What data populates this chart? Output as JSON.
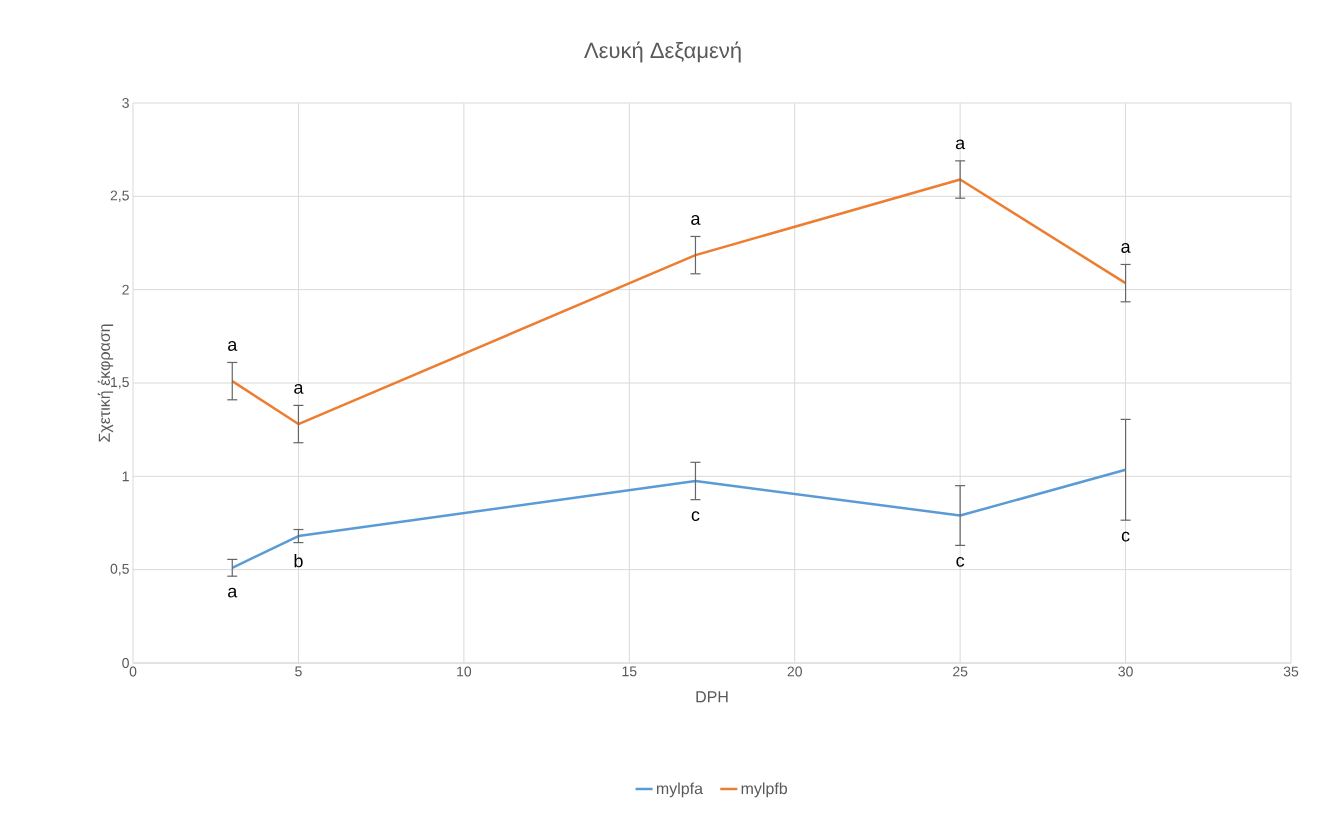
{
  "chart_data": {
    "type": "line",
    "title": "Λευκή Δεξαμενή",
    "xlabel": "DPH",
    "ylabel": "Σχετική έκφραση",
    "x": [
      3,
      5,
      17,
      25,
      30
    ],
    "series": [
      {
        "name": "mylpfa",
        "color": "#5b9bd5",
        "values": [
          0.51,
          0.68,
          0.975,
          0.79,
          1.035
        ],
        "errors": [
          0.045,
          0.035,
          0.1,
          0.16,
          0.27
        ]
      },
      {
        "name": "mylpfb",
        "color": "#ed7d31",
        "values": [
          1.51,
          1.28,
          2.185,
          2.59,
          2.035
        ],
        "errors": [
          0.1,
          0.1,
          0.1,
          0.1,
          0.1
        ]
      }
    ],
    "xlim": [
      0,
      35
    ],
    "xticks": [
      0,
      5,
      10,
      15,
      20,
      25,
      30,
      35
    ],
    "ylim": [
      0,
      3
    ],
    "yticks": [
      0,
      {
        "value": 0.5,
        "label": "0,5"
      },
      1,
      {
        "value": 1.5,
        "label": "1,5"
      },
      2,
      {
        "value": 2.5,
        "label": "2,5"
      },
      3
    ],
    "grid": true,
    "legend": "bottom",
    "annotations": [
      {
        "text": "a",
        "x": 3,
        "y": 0.465
      },
      {
        "text": "b",
        "x": 5,
        "y": 0.645
      },
      {
        "text": "c",
        "x": 17,
        "y": 0.875
      },
      {
        "text": "c",
        "x": 25,
        "y": 0.63
      },
      {
        "text": "c",
        "x": 30,
        "y": 0.765
      },
      {
        "text": "a",
        "x": 3,
        "y": 1.61
      },
      {
        "text": "a",
        "x": 5,
        "y": 1.38
      },
      {
        "text": "a",
        "x": 17,
        "y": 2.285
      },
      {
        "text": "a",
        "x": 25,
        "y": 2.69
      },
      {
        "text": "a",
        "x": 30,
        "y": 2.135
      }
    ]
  }
}
